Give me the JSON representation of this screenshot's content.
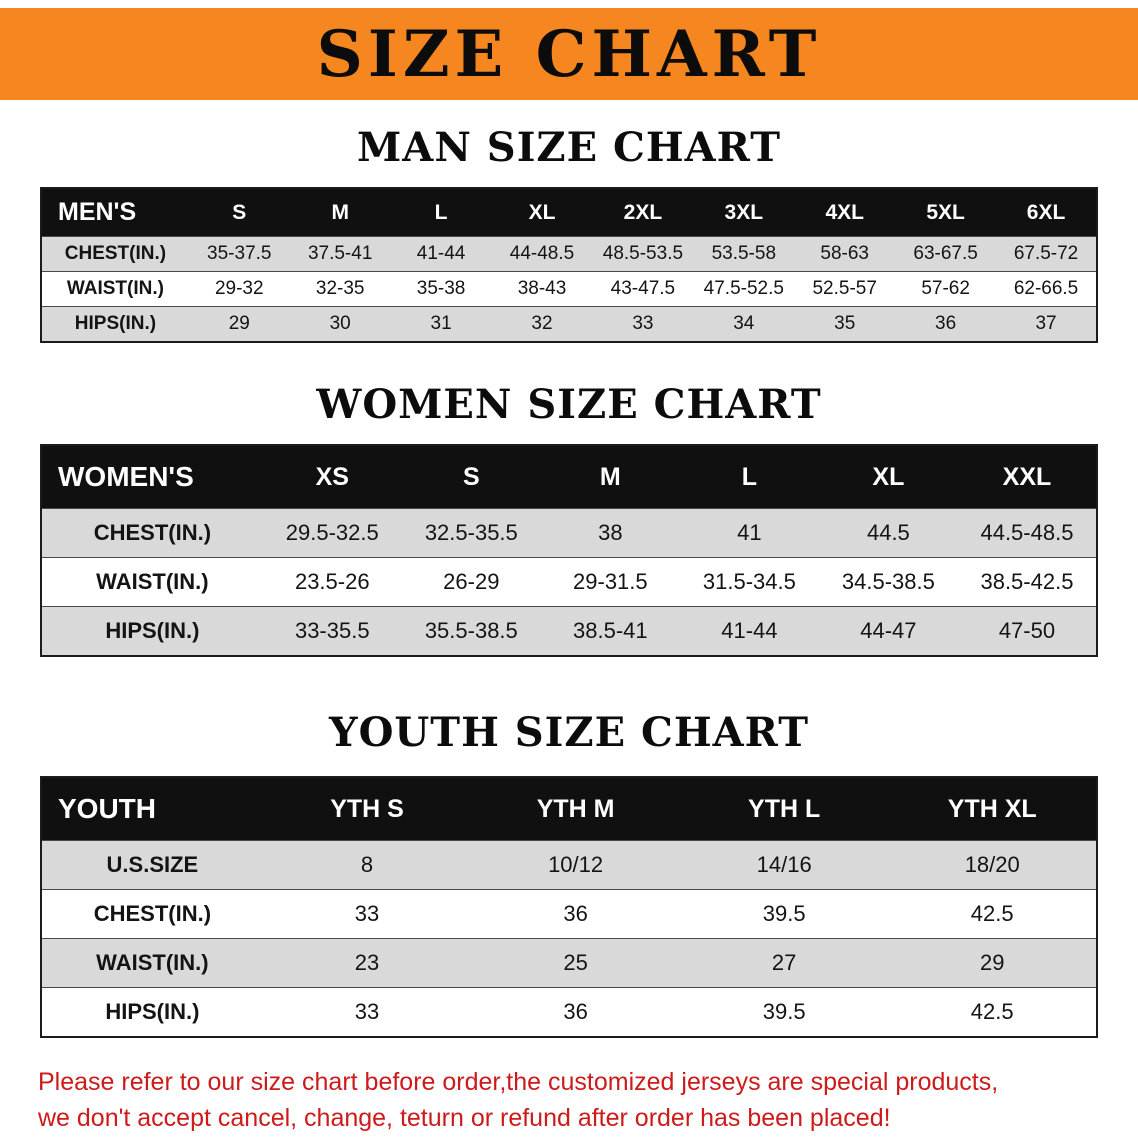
{
  "banner": {
    "title": "SIZE CHART"
  },
  "chart_data": [
    {
      "type": "table",
      "title": "MAN SIZE CHART",
      "columns": [
        "MEN'S",
        "S",
        "M",
        "L",
        "XL",
        "2XL",
        "3XL",
        "4XL",
        "5XL",
        "6XL"
      ],
      "rows": [
        [
          "CHEST(IN.)",
          "35-37.5",
          "37.5-41",
          "41-44",
          "44-48.5",
          "48.5-53.5",
          "53.5-58",
          "58-63",
          "63-67.5",
          "67.5-72"
        ],
        [
          "WAIST(IN.)",
          "29-32",
          "32-35",
          "35-38",
          "38-43",
          "43-47.5",
          "47.5-52.5",
          "52.5-57",
          "57-62",
          "62-66.5"
        ],
        [
          "HIPS(IN.)",
          "29",
          "30",
          "31",
          "32",
          "33",
          "34",
          "35",
          "36",
          "37"
        ]
      ]
    },
    {
      "type": "table",
      "title": "WOMEN SIZE CHART",
      "columns": [
        "WOMEN'S",
        "XS",
        "S",
        "M",
        "L",
        "XL",
        "XXL"
      ],
      "rows": [
        [
          "CHEST(IN.)",
          "29.5-32.5",
          "32.5-35.5",
          "38",
          "41",
          "44.5",
          "44.5-48.5"
        ],
        [
          "WAIST(IN.)",
          "23.5-26",
          "26-29",
          "29-31.5",
          "31.5-34.5",
          "34.5-38.5",
          "38.5-42.5"
        ],
        [
          "HIPS(IN.)",
          "33-35.5",
          "35.5-38.5",
          "38.5-41",
          "41-44",
          "44-47",
          "47-50"
        ]
      ]
    },
    {
      "type": "table",
      "title": "YOUTH SIZE CHART",
      "columns": [
        "YOUTH",
        "YTH S",
        "YTH M",
        "YTH L",
        "YTH XL"
      ],
      "rows": [
        [
          "U.S.SIZE",
          "8",
          "10/12",
          "14/16",
          "18/20"
        ],
        [
          "CHEST(IN.)",
          "33",
          "36",
          "39.5",
          "42.5"
        ],
        [
          "WAIST(IN.)",
          "23",
          "25",
          "27",
          "29"
        ],
        [
          "HIPS(IN.)",
          "33",
          "36",
          "39.5",
          "42.5"
        ]
      ]
    }
  ],
  "footer": {
    "line1": "Please refer to our size chart before order,the customized jerseys are special products,",
    "line2": "we don't accept cancel, change, teturn or refund after order has been placed!"
  },
  "colors": {
    "banner_bg": "#f6861f",
    "header_bg": "#101010",
    "row_alt_bg": "#d9d9d9",
    "note_red": "#cd1a1a"
  }
}
